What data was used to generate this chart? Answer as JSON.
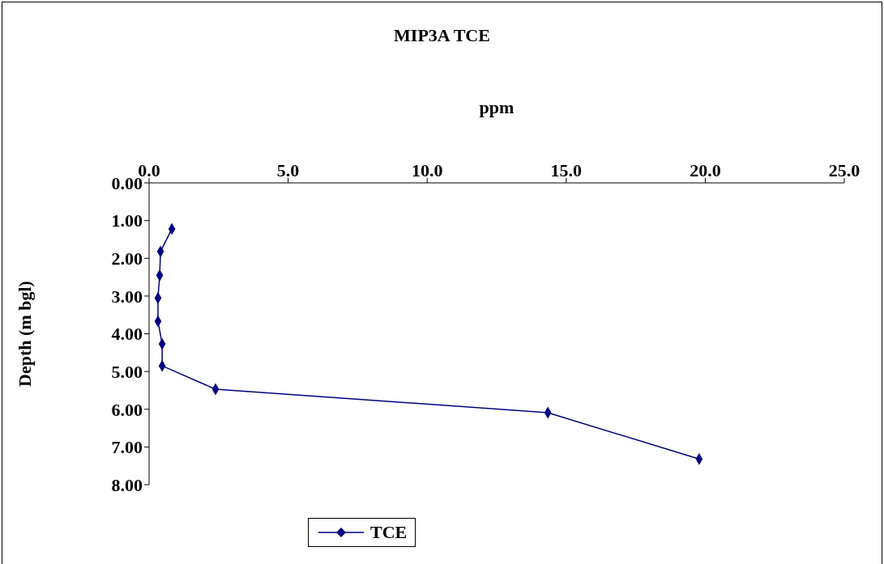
{
  "chart_data": {
    "type": "line",
    "title": "MIP3A TCE",
    "xlabel": "ppm",
    "ylabel": "Depth (m bgl)",
    "series": [
      {
        "name": "TCE",
        "color": "#000080",
        "x": [
          0.82,
          0.41,
          0.38,
          0.32,
          0.32,
          0.47,
          0.47,
          2.39,
          14.34,
          19.78
        ],
        "values": [
          1.22,
          1.82,
          2.45,
          3.05,
          3.67,
          4.27,
          4.85,
          5.47,
          6.09,
          7.32
        ]
      }
    ],
    "xlim": [
      0,
      25
    ],
    "xticks": [
      {
        "value": 0,
        "label": "0.0"
      },
      {
        "value": 5,
        "label": "5.0"
      },
      {
        "value": 10,
        "label": "10.0"
      },
      {
        "value": 15,
        "label": "15.0"
      },
      {
        "value": 20,
        "label": "20.0"
      },
      {
        "value": 25,
        "label": "25.0"
      }
    ],
    "ylim": [
      8,
      0
    ],
    "yticks": [
      {
        "value": 0,
        "label": "0.00"
      },
      {
        "value": 1,
        "label": "1.00"
      },
      {
        "value": 2,
        "label": "2.00"
      },
      {
        "value": 3,
        "label": "3.00"
      },
      {
        "value": 4,
        "label": "4.00"
      },
      {
        "value": 5,
        "label": "5.00"
      },
      {
        "value": 6,
        "label": "6.00"
      },
      {
        "value": 7,
        "label": "7.00"
      },
      {
        "value": 8,
        "label": "8.00"
      }
    ],
    "legend": "bottom",
    "marker": "diamond",
    "grid": false
  }
}
